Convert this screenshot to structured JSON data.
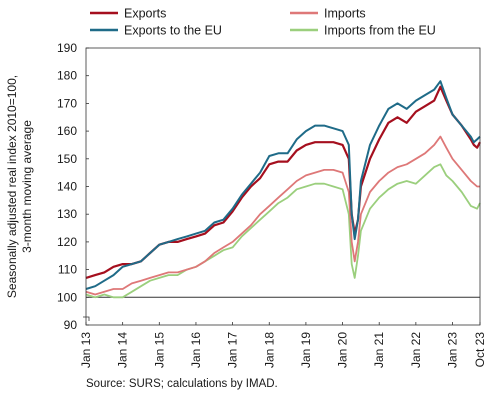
{
  "chart_data": {
    "type": "line",
    "ylabel": "Seasonally adjusted real index 2010=100, 3-month moving average",
    "ylabel_lines": [
      "Seasonally adjusted real index 2010=100,",
      "3-month moving average"
    ],
    "xlabel": "",
    "ylim": [
      90,
      190
    ],
    "yticks": [
      90,
      100,
      110,
      120,
      130,
      140,
      150,
      160,
      170,
      180,
      190
    ],
    "xlim": [
      2013.0,
      2023.75
    ],
    "xticks": [
      {
        "label": "Jan 13",
        "x": 2013.0
      },
      {
        "label": "Jan 14",
        "x": 2014.0
      },
      {
        "label": "Jan 15",
        "x": 2015.0
      },
      {
        "label": "Jan 16",
        "x": 2016.0
      },
      {
        "label": "Jan 17",
        "x": 2017.0
      },
      {
        "label": "Jan 18",
        "x": 2018.0
      },
      {
        "label": "Jan 19",
        "x": 2019.0
      },
      {
        "label": "Jan 20",
        "x": 2020.0
      },
      {
        "label": "Jan 21",
        "x": 2021.0
      },
      {
        "label": "Jan 22",
        "x": 2022.0
      },
      {
        "label": "Jan 23",
        "x": 2023.0
      },
      {
        "label": "Oct 23",
        "x": 2023.75
      }
    ],
    "reference_line": 100,
    "grid": false,
    "axis_break": true,
    "legend": {
      "placement": "top",
      "columns": 2
    },
    "series": [
      {
        "name": "Exports",
        "color": "#a50f1e",
        "points": [
          [
            2013.0,
            107
          ],
          [
            2013.25,
            108
          ],
          [
            2013.5,
            109
          ],
          [
            2013.75,
            111
          ],
          [
            2014.0,
            112
          ],
          [
            2014.25,
            112
          ],
          [
            2014.5,
            113
          ],
          [
            2014.75,
            116
          ],
          [
            2015.0,
            119
          ],
          [
            2015.25,
            120
          ],
          [
            2015.5,
            120
          ],
          [
            2015.75,
            121
          ],
          [
            2016.0,
            122
          ],
          [
            2016.25,
            123
          ],
          [
            2016.5,
            126
          ],
          [
            2016.75,
            127
          ],
          [
            2017.0,
            131
          ],
          [
            2017.25,
            136
          ],
          [
            2017.5,
            140
          ],
          [
            2017.75,
            143
          ],
          [
            2018.0,
            148
          ],
          [
            2018.25,
            149
          ],
          [
            2018.5,
            149
          ],
          [
            2018.75,
            153
          ],
          [
            2019.0,
            155
          ],
          [
            2019.25,
            156
          ],
          [
            2019.5,
            156
          ],
          [
            2019.75,
            156
          ],
          [
            2020.0,
            155
          ],
          [
            2020.17,
            150
          ],
          [
            2020.25,
            130
          ],
          [
            2020.33,
            123
          ],
          [
            2020.42,
            128
          ],
          [
            2020.5,
            140
          ],
          [
            2020.75,
            150
          ],
          [
            2021.0,
            157
          ],
          [
            2021.25,
            163
          ],
          [
            2021.5,
            165
          ],
          [
            2021.75,
            163
          ],
          [
            2022.0,
            167
          ],
          [
            2022.25,
            169
          ],
          [
            2022.5,
            171
          ],
          [
            2022.67,
            176
          ],
          [
            2022.83,
            171
          ],
          [
            2023.0,
            166
          ],
          [
            2023.25,
            162
          ],
          [
            2023.5,
            157
          ],
          [
            2023.58,
            155
          ],
          [
            2023.67,
            154
          ],
          [
            2023.75,
            156
          ]
        ]
      },
      {
        "name": "Imports",
        "color": "#de7878",
        "points": [
          [
            2013.0,
            102
          ],
          [
            2013.25,
            101
          ],
          [
            2013.5,
            102
          ],
          [
            2013.75,
            103
          ],
          [
            2014.0,
            103
          ],
          [
            2014.25,
            105
          ],
          [
            2014.5,
            106
          ],
          [
            2014.75,
            107
          ],
          [
            2015.0,
            108
          ],
          [
            2015.25,
            109
          ],
          [
            2015.5,
            109
          ],
          [
            2015.75,
            110
          ],
          [
            2016.0,
            111
          ],
          [
            2016.25,
            113
          ],
          [
            2016.5,
            116
          ],
          [
            2016.75,
            118
          ],
          [
            2017.0,
            120
          ],
          [
            2017.25,
            123
          ],
          [
            2017.5,
            126
          ],
          [
            2017.75,
            130
          ],
          [
            2018.0,
            133
          ],
          [
            2018.25,
            136
          ],
          [
            2018.5,
            139
          ],
          [
            2018.75,
            142
          ],
          [
            2019.0,
            144
          ],
          [
            2019.25,
            145
          ],
          [
            2019.5,
            146
          ],
          [
            2019.75,
            146
          ],
          [
            2020.0,
            145
          ],
          [
            2020.17,
            138
          ],
          [
            2020.25,
            120
          ],
          [
            2020.33,
            113
          ],
          [
            2020.42,
            120
          ],
          [
            2020.5,
            130
          ],
          [
            2020.75,
            138
          ],
          [
            2021.0,
            142
          ],
          [
            2021.25,
            145
          ],
          [
            2021.5,
            147
          ],
          [
            2021.75,
            148
          ],
          [
            2022.0,
            150
          ],
          [
            2022.25,
            152
          ],
          [
            2022.5,
            155
          ],
          [
            2022.67,
            158
          ],
          [
            2022.83,
            154
          ],
          [
            2023.0,
            150
          ],
          [
            2023.25,
            146
          ],
          [
            2023.5,
            142
          ],
          [
            2023.67,
            140
          ],
          [
            2023.75,
            140
          ]
        ]
      },
      {
        "name": "Exports to the EU",
        "color": "#1f6b88",
        "points": [
          [
            2013.0,
            103
          ],
          [
            2013.25,
            104
          ],
          [
            2013.5,
            106
          ],
          [
            2013.75,
            108
          ],
          [
            2014.0,
            111
          ],
          [
            2014.25,
            112
          ],
          [
            2014.5,
            113
          ],
          [
            2014.75,
            116
          ],
          [
            2015.0,
            119
          ],
          [
            2015.25,
            120
          ],
          [
            2015.5,
            121
          ],
          [
            2015.75,
            122
          ],
          [
            2016.0,
            123
          ],
          [
            2016.25,
            124
          ],
          [
            2016.5,
            127
          ],
          [
            2016.75,
            128
          ],
          [
            2017.0,
            132
          ],
          [
            2017.25,
            137
          ],
          [
            2017.5,
            141
          ],
          [
            2017.75,
            145
          ],
          [
            2018.0,
            151
          ],
          [
            2018.25,
            152
          ],
          [
            2018.5,
            152
          ],
          [
            2018.75,
            157
          ],
          [
            2019.0,
            160
          ],
          [
            2019.25,
            162
          ],
          [
            2019.5,
            162
          ],
          [
            2019.75,
            161
          ],
          [
            2020.0,
            160
          ],
          [
            2020.17,
            155
          ],
          [
            2020.25,
            130
          ],
          [
            2020.33,
            121
          ],
          [
            2020.42,
            128
          ],
          [
            2020.5,
            142
          ],
          [
            2020.75,
            155
          ],
          [
            2021.0,
            162
          ],
          [
            2021.25,
            168
          ],
          [
            2021.5,
            170
          ],
          [
            2021.75,
            168
          ],
          [
            2022.0,
            171
          ],
          [
            2022.25,
            173
          ],
          [
            2022.5,
            175
          ],
          [
            2022.67,
            178
          ],
          [
            2022.83,
            172
          ],
          [
            2023.0,
            166
          ],
          [
            2023.25,
            162
          ],
          [
            2023.5,
            158
          ],
          [
            2023.58,
            156
          ],
          [
            2023.67,
            157
          ],
          [
            2023.75,
            158
          ]
        ]
      },
      {
        "name": "Imports from the EU",
        "color": "#9bcf7d",
        "points": [
          [
            2013.0,
            101
          ],
          [
            2013.25,
            100
          ],
          [
            2013.5,
            101
          ],
          [
            2013.75,
            100
          ],
          [
            2014.0,
            100
          ],
          [
            2014.25,
            102
          ],
          [
            2014.5,
            104
          ],
          [
            2014.75,
            106
          ],
          [
            2015.0,
            107
          ],
          [
            2015.25,
            108
          ],
          [
            2015.5,
            108
          ],
          [
            2015.75,
            110
          ],
          [
            2016.0,
            111
          ],
          [
            2016.25,
            113
          ],
          [
            2016.5,
            115
          ],
          [
            2016.75,
            117
          ],
          [
            2017.0,
            118
          ],
          [
            2017.25,
            122
          ],
          [
            2017.5,
            125
          ],
          [
            2017.75,
            128
          ],
          [
            2018.0,
            131
          ],
          [
            2018.25,
            134
          ],
          [
            2018.5,
            136
          ],
          [
            2018.75,
            139
          ],
          [
            2019.0,
            140
          ],
          [
            2019.25,
            141
          ],
          [
            2019.5,
            141
          ],
          [
            2019.75,
            140
          ],
          [
            2020.0,
            139
          ],
          [
            2020.17,
            130
          ],
          [
            2020.25,
            112
          ],
          [
            2020.33,
            107
          ],
          [
            2020.42,
            115
          ],
          [
            2020.5,
            124
          ],
          [
            2020.75,
            132
          ],
          [
            2021.0,
            136
          ],
          [
            2021.25,
            139
          ],
          [
            2021.5,
            141
          ],
          [
            2021.75,
            142
          ],
          [
            2022.0,
            141
          ],
          [
            2022.25,
            144
          ],
          [
            2022.5,
            147
          ],
          [
            2022.67,
            148
          ],
          [
            2022.83,
            144
          ],
          [
            2023.0,
            142
          ],
          [
            2023.25,
            138
          ],
          [
            2023.5,
            133
          ],
          [
            2023.67,
            132
          ],
          [
            2023.75,
            134
          ]
        ]
      }
    ]
  },
  "source": "Source: SURS; calculations by IMAD."
}
